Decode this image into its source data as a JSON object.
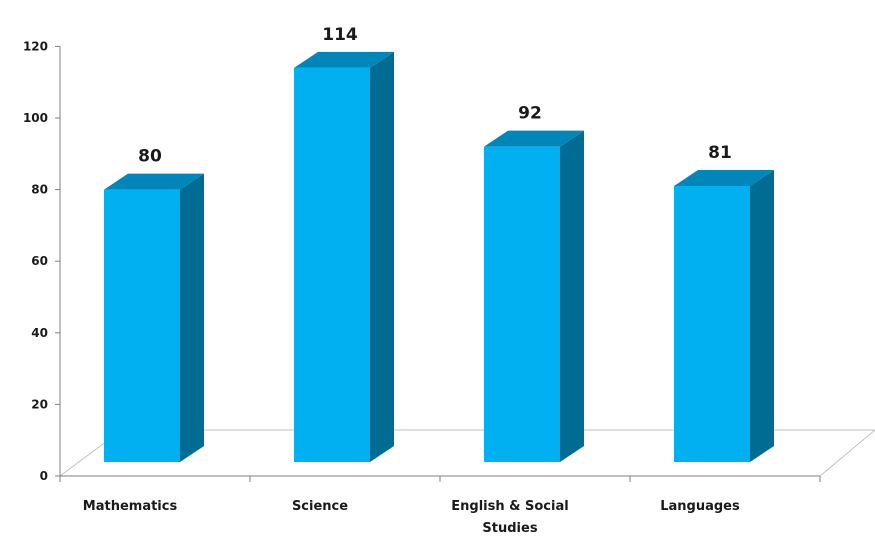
{
  "chart_data": {
    "type": "bar",
    "categories": [
      "Mathematics",
      "Science",
      "English & Social Studies",
      "Languages"
    ],
    "category_lines": [
      [
        "Mathematics"
      ],
      [
        "Science"
      ],
      [
        "English & Social",
        "Studies"
      ],
      [
        "Languages"
      ]
    ],
    "values": [
      80,
      114,
      92,
      81
    ],
    "data_labels": [
      "80",
      "114",
      "92",
      "81"
    ],
    "ylim": [
      0,
      120
    ],
    "yticks": [
      "0",
      "20",
      "40",
      "60",
      "80",
      "100",
      "120"
    ],
    "title": "",
    "xlabel": "",
    "ylabel": "",
    "grid": false,
    "legend": "none",
    "style": "3d-column",
    "colors": {
      "front": "#00B0F0",
      "side": "#006C93",
      "top": "#0086B8",
      "floor": "#BFBFBF",
      "axis": "#808080"
    }
  }
}
